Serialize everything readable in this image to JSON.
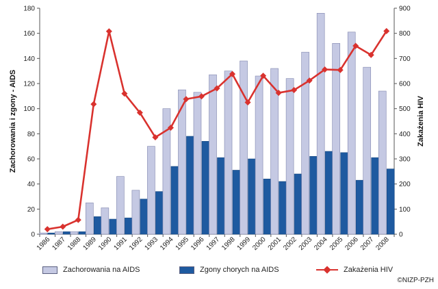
{
  "chart_data": {
    "type": "bar",
    "categories": [
      "1986",
      "1987",
      "1988",
      "1989",
      "1990",
      "1991",
      "1992",
      "1993",
      "1994",
      "1995",
      "1996",
      "1997",
      "1998",
      "1999",
      "2000",
      "2001",
      "2002",
      "2003",
      "2004",
      "2005",
      "2006",
      "2007",
      "2008"
    ],
    "series": [
      {
        "name": "Zachorowania na AIDS",
        "axis": "left",
        "kind": "bar",
        "color": "#c5c9e3",
        "values": [
          1,
          2,
          2,
          25,
          21,
          46,
          35,
          70,
          100,
          115,
          113,
          127,
          130,
          138,
          126,
          132,
          124,
          145,
          176,
          152,
          161,
          133,
          114
        ]
      },
      {
        "name": "Zgony chorych na AIDS",
        "axis": "left",
        "kind": "bar",
        "color": "#1e5aa0",
        "values": [
          1,
          2,
          2,
          14,
          12,
          13,
          28,
          34,
          54,
          78,
          74,
          61,
          51,
          60,
          44,
          42,
          48,
          62,
          66,
          65,
          43,
          61,
          52
        ]
      },
      {
        "name": "Zakażenia HIV",
        "axis": "right",
        "kind": "line",
        "color": "#d9322e",
        "values": [
          20,
          30,
          57,
          518,
          808,
          560,
          484,
          386,
          424,
          538,
          549,
          581,
          638,
          525,
          631,
          563,
          574,
          612,
          656,
          654,
          750,
          714,
          809
        ]
      }
    ],
    "ylabel_left": "Zachorowania i zgony - AIDS",
    "ylabel_right": "Zakażenia HIV",
    "ylim_left": [
      0,
      180
    ],
    "ylim_right": [
      0,
      900
    ],
    "yticks_left": [
      0,
      20,
      40,
      60,
      80,
      100,
      120,
      140,
      160,
      180
    ],
    "yticks_right": [
      0,
      100,
      200,
      300,
      400,
      500,
      600,
      700,
      800,
      900
    ],
    "grid": false,
    "legend_position": "bottom"
  },
  "legend": {
    "items": [
      {
        "label": "Zachorowania na AIDS",
        "color": "#c5c9e3"
      },
      {
        "label": "Zgony chorych na AIDS",
        "color": "#1e5aa0"
      },
      {
        "label": "Zakażenia HIV",
        "color": "#d9322e"
      }
    ]
  },
  "credit": "©NIZP-PZH"
}
